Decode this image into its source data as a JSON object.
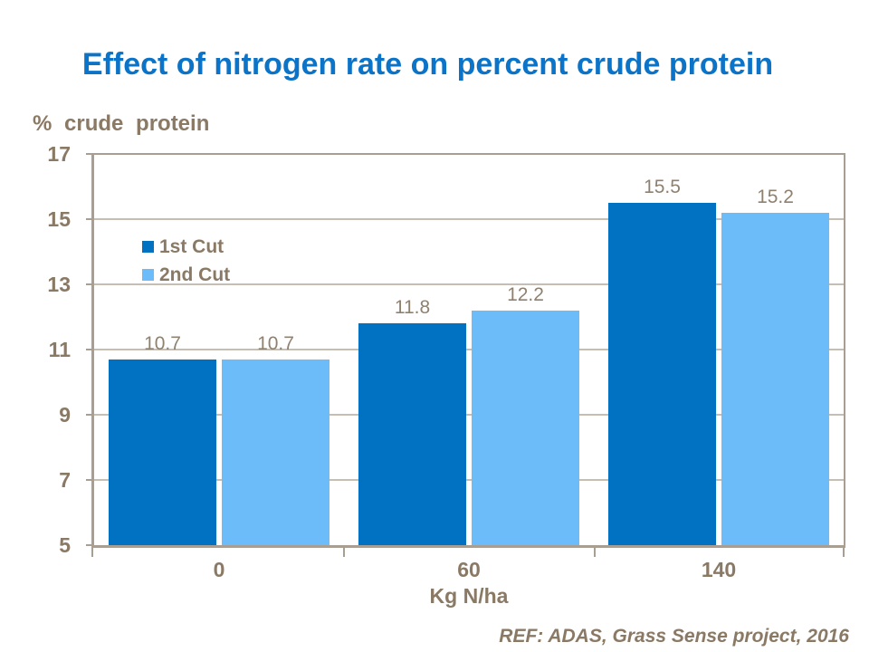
{
  "slide": {
    "title": "Effect of nitrogen rate on percent crude protein",
    "footer_ref": "REF: ADAS, Grass Sense project, 2016"
  },
  "chart_data": {
    "type": "bar",
    "title": "Effect of nitrogen rate on percent crude protein",
    "categories": [
      "0",
      "60",
      "140"
    ],
    "series": [
      {
        "name": "1st Cut",
        "values": [
          10.7,
          11.8,
          15.5
        ],
        "color": "#0171C2"
      },
      {
        "name": "2nd Cut",
        "values": [
          10.7,
          12.2,
          15.2
        ],
        "color": "#6CBCF9"
      }
    ],
    "xlabel": "Kg N/ha",
    "ylabel": "% crude protein",
    "ylim": [
      5,
      17
    ],
    "ytick_step": 2,
    "grid": true,
    "legend_position": "inside-top-left",
    "value_labels": true
  },
  "colors": {
    "title": "#0B74C9",
    "axis_text": "#8A7964",
    "value_label_text": "#8F8170",
    "axis_line": "#A89E92",
    "gridline": "#C7BEB3",
    "background": "#FFFFFF"
  }
}
